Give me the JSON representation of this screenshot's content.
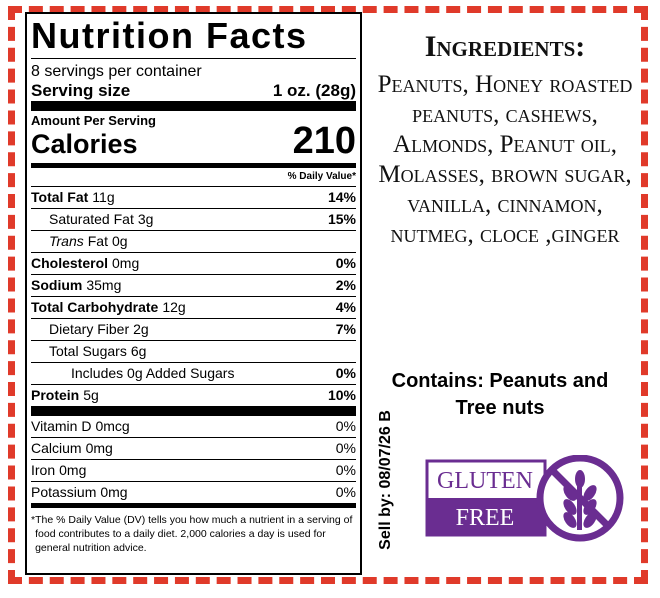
{
  "nutrition": {
    "title": "Nutrition Facts",
    "servings": "8 servings per container",
    "serving_size_label": "Serving size",
    "serving_size": "1 oz. (28g)",
    "amount_per_serving": "Amount Per Serving",
    "calories_label": "Calories",
    "calories": 210,
    "dv_header": "% Daily Value*",
    "rows": [
      {
        "name": "Total Fat",
        "amount": "11g",
        "dv": "14%"
      },
      {
        "name": "Saturated Fat",
        "amount": "3g",
        "dv": "15%"
      },
      {
        "italic": "Trans",
        "name": "Fat",
        "amount": "0g"
      },
      {
        "name": "Cholesterol",
        "amount": "0mg",
        "dv": "0%"
      },
      {
        "name": "Sodium",
        "amount": "35mg",
        "dv": "2%"
      },
      {
        "name": "Total Carbohydrate",
        "amount": "12g",
        "dv": "4%"
      },
      {
        "name": "Dietary Fiber",
        "amount": "2g",
        "dv": "7%"
      },
      {
        "name": "Total Sugars",
        "amount": "6g"
      },
      {
        "name": "Includes 0g Added Sugars",
        "dv": "0%"
      },
      {
        "name": "Protein",
        "amount": "5g",
        "dv": "10%"
      }
    ],
    "vitamins": [
      {
        "name": "Vitamin D",
        "amount": "0mcg",
        "dv": "0%"
      },
      {
        "name": "Calcium",
        "amount": "0mg",
        "dv": "0%"
      },
      {
        "name": "Iron",
        "amount": "0mg",
        "dv": "0%"
      },
      {
        "name": "Potassium",
        "amount": "0mg",
        "dv": "0%"
      }
    ],
    "footnote": "The % Daily Value (DV) tells you how much a nutrient in a serving of food contributes to a daily diet. 2,000 calories a day is used for general nutrition advice."
  },
  "ingredients": {
    "title": "Ingredients:",
    "text": "Peanuts, Honey roasted peanuts, cashews, Almonds, Peanut oil, Molasses, brown sugar, vanilla, cinnamon, nutmeg, cloce ,ginger"
  },
  "contains": "Contains: Peanuts and Tree nuts",
  "sell_by": "Sell by: 08/07/26 B",
  "badge": {
    "line1": "GLUTEN",
    "line2": "FREE"
  }
}
